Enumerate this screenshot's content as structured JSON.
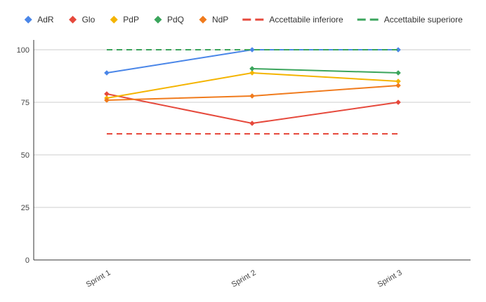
{
  "chart_data": {
    "type": "line",
    "categories": [
      "Sprint 1",
      "Sprint 2",
      "Sprint 3"
    ],
    "ylim": [
      0,
      100
    ],
    "yticks": [
      0,
      25,
      50,
      75,
      100
    ],
    "grid": true,
    "legend_position": "top",
    "series": [
      {
        "name": "AdR",
        "color": "#4a86e8",
        "style": "solid",
        "marker": "diamond",
        "values": [
          89,
          100,
          100
        ]
      },
      {
        "name": "Glo",
        "color": "#e6493c",
        "style": "solid",
        "marker": "diamond",
        "values": [
          79,
          65,
          75
        ]
      },
      {
        "name": "PdP",
        "color": "#f4b400",
        "style": "solid",
        "marker": "diamond",
        "values": [
          77,
          89,
          85
        ]
      },
      {
        "name": "PdQ",
        "color": "#3ba55c",
        "style": "solid",
        "marker": "diamond",
        "values": [
          null,
          91,
          89
        ]
      },
      {
        "name": "NdP",
        "color": "#f07b1d",
        "style": "solid",
        "marker": "diamond",
        "values": [
          76,
          78,
          83
        ]
      },
      {
        "name": "Accettabile inferiore",
        "color": "#e6493c",
        "style": "dashed",
        "marker": "none",
        "values": [
          60,
          60,
          60
        ]
      },
      {
        "name": "Accettabile superiore",
        "color": "#3ba55c",
        "style": "dashed",
        "marker": "none",
        "values": [
          100,
          100,
          100
        ]
      }
    ]
  }
}
